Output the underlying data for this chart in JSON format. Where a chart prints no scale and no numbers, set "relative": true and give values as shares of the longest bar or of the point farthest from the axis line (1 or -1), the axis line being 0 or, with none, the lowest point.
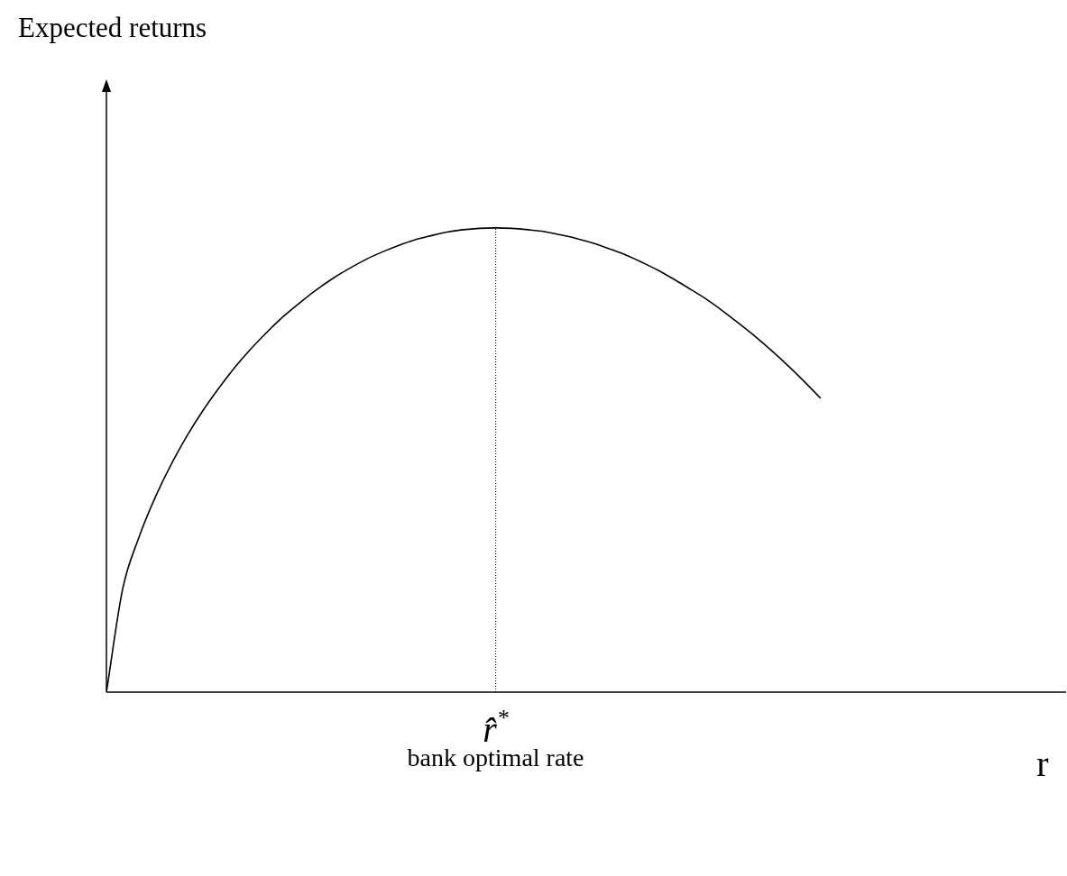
{
  "chart_data": {
    "type": "line",
    "relative": true,
    "categories": [
      null,
      null,
      null,
      null,
      null,
      null,
      null,
      null,
      null,
      null,
      null,
      null,
      null,
      null,
      null,
      null,
      null,
      null,
      null,
      null,
      null,
      null,
      null,
      null,
      null,
      null,
      null,
      null,
      null,
      null,
      null,
      null,
      null,
      null,
      null,
      null,
      null,
      null,
      null,
      null,
      null,
      null,
      null,
      null,
      null
    ],
    "series": [
      {
        "color": "#000000",
        "values": [
          0,
          0.222,
          0.333,
          0.419,
          0.491,
          0.554,
          0.609,
          0.658,
          0.703,
          0.743,
          0.779,
          0.812,
          0.841,
          0.868,
          0.892,
          0.913,
          0.932,
          0.948,
          0.962,
          0.974,
          0.983,
          0.991,
          0.996,
          0.999,
          1,
          0.999,
          0.996,
          0.992,
          0.985,
          0.977,
          0.967,
          0.955,
          0.942,
          0.926,
          0.909,
          0.889,
          0.868,
          0.846,
          0.821,
          0.794,
          0.766,
          0.736,
          0.704,
          0.67,
          0.634
        ]
      }
    ],
    "marker": "none",
    "line_style": "solid",
    "legend": false,
    "annotations": [
      "Expected returns",
      "r̂$^{*}$",
      "bank optimal rate",
      "r"
    ]
  }
}
